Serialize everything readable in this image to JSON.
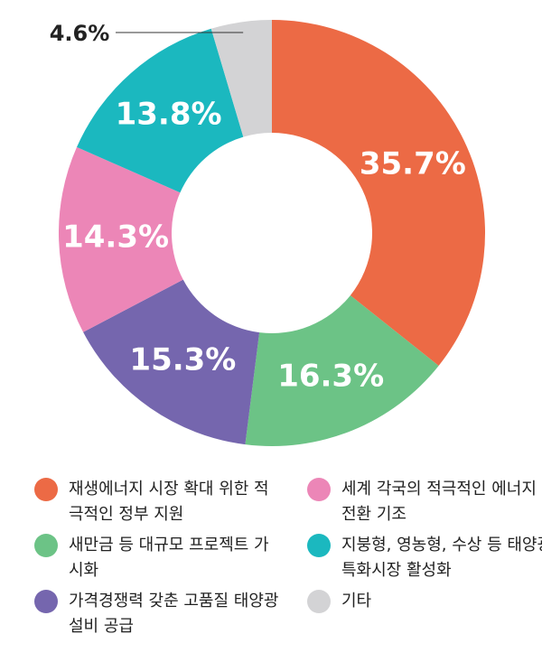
{
  "chart_data": {
    "type": "donut",
    "series": [
      {
        "name": "재생에너지 시장 확대 위한 적극적인 정부 지원",
        "color": "#ec6a45"
      },
      {
        "name": "새만금 등 대규모 프로젝트 가시화",
        "color": "#6cc386"
      },
      {
        "name": "가격경쟁력 갖춘 고품질 태양광 설비 공급",
        "color": "#7566ae"
      },
      {
        "name": "세계 각국의 적극적인 에너지 전환 기조",
        "color": "#ec86b7"
      },
      {
        "name": "지붕형, 영농형, 수상 등 태양광 특화시장 활성화",
        "color": "#1bb8bf"
      },
      {
        "name": "기타",
        "color": "#d3d3d5"
      }
    ],
    "values": [
      35.7,
      16.3,
      15.3,
      14.3,
      13.8,
      4.6
    ],
    "value_labels": [
      "35.7%",
      "16.3%",
      "15.3%",
      "14.3%",
      "13.8%",
      "4.6%"
    ]
  }
}
